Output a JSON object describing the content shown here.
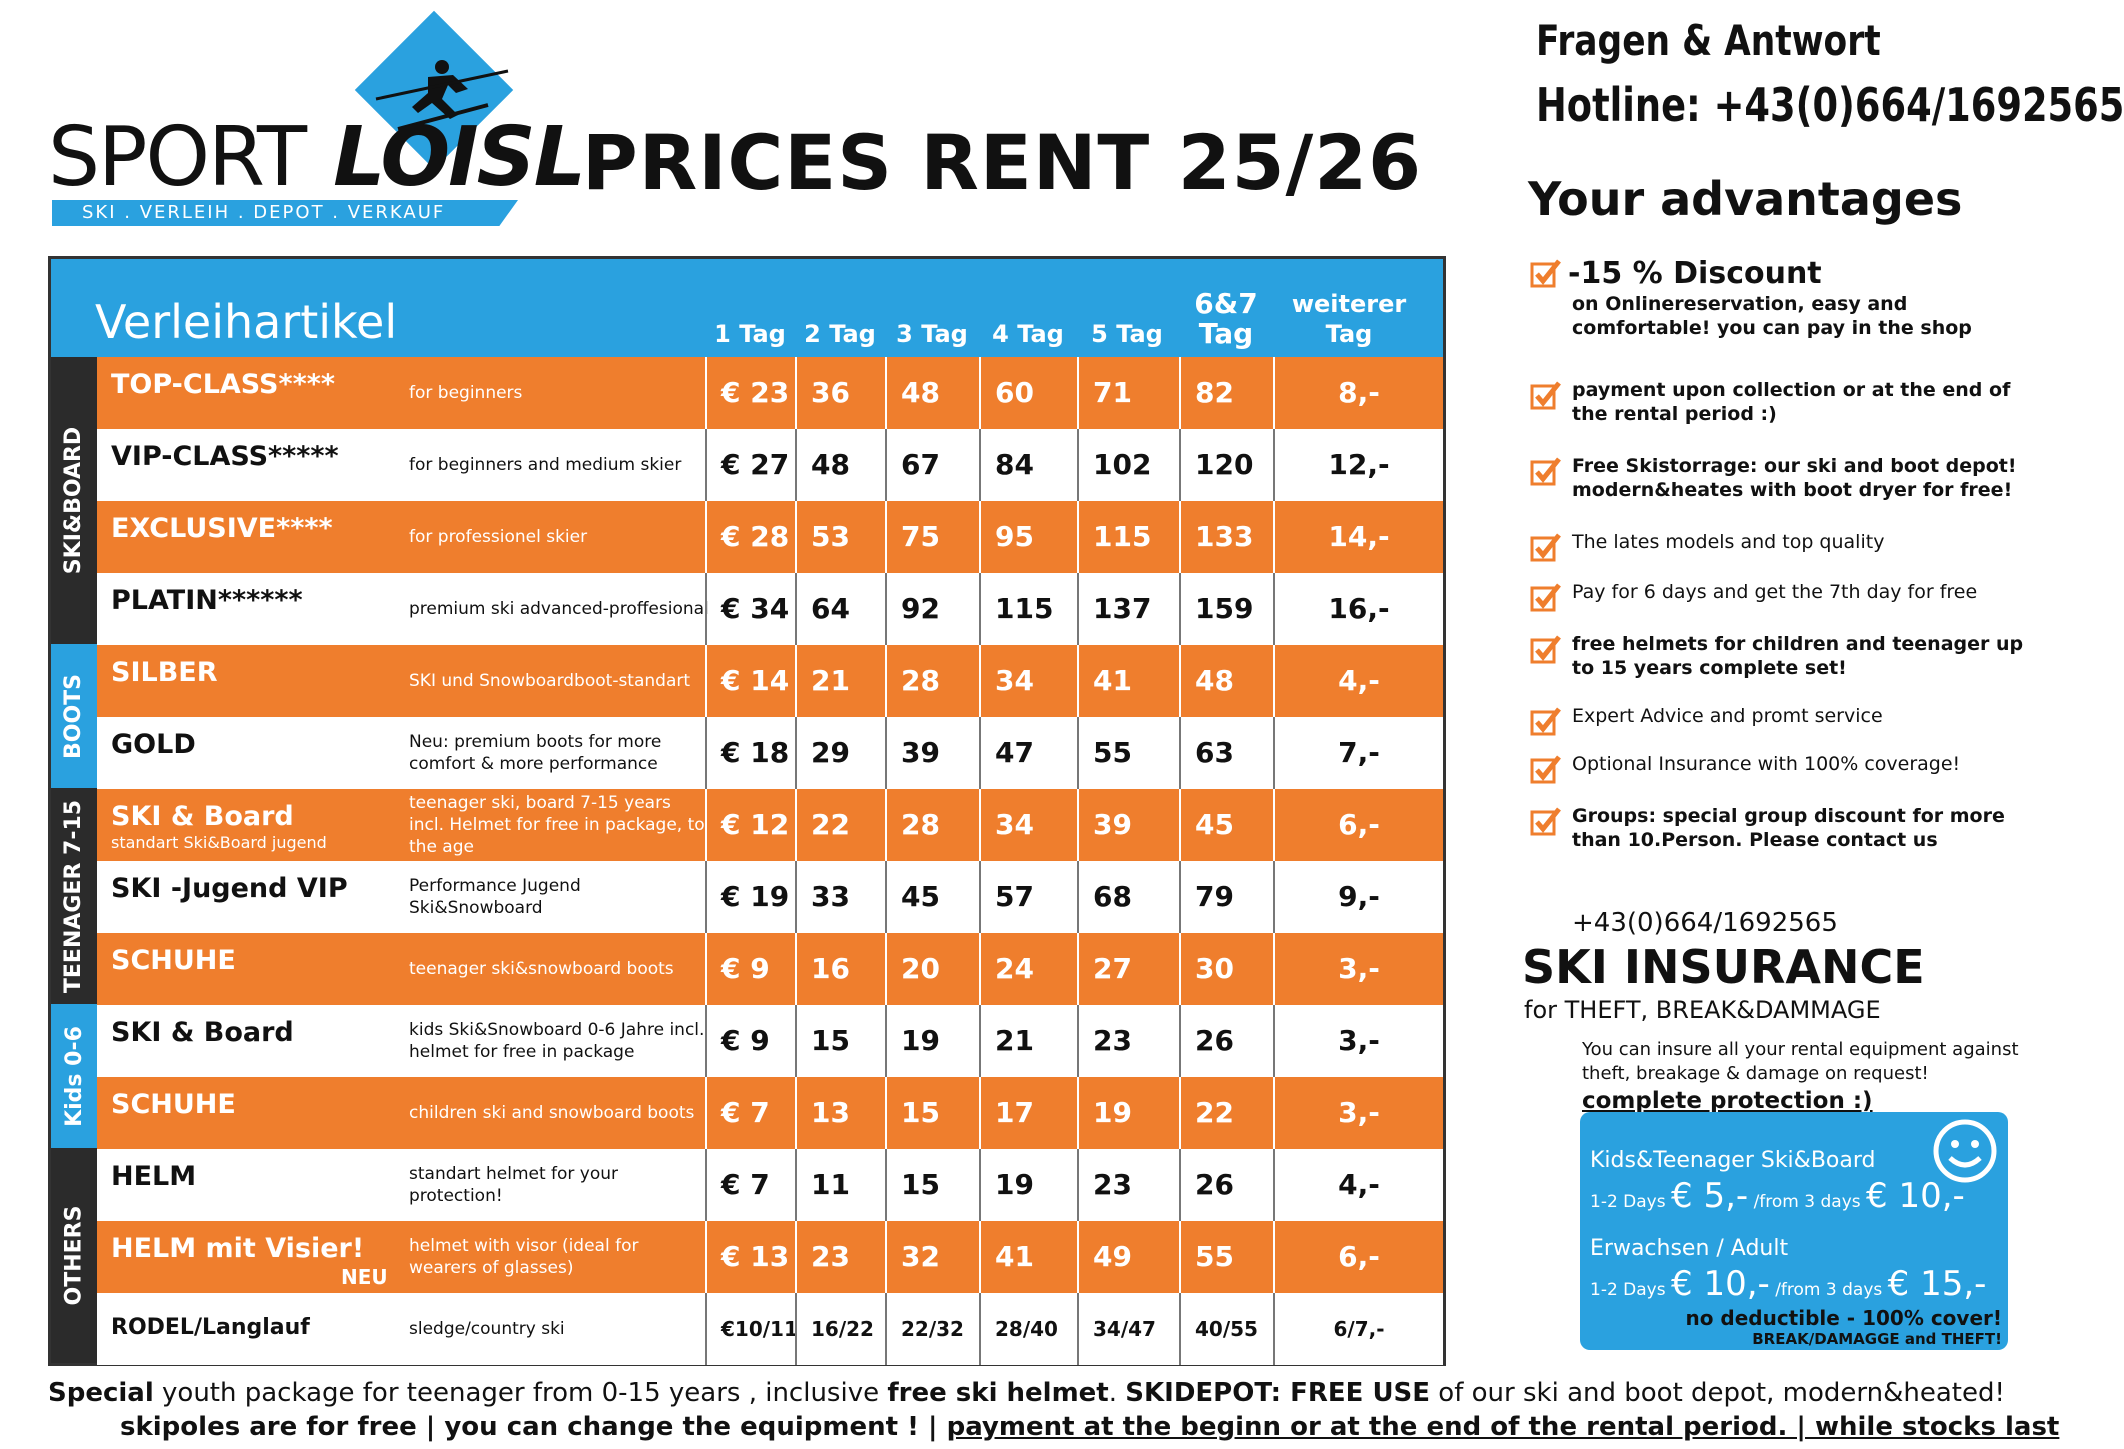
{
  "logo": {
    "brand_a": "SPORT",
    "brand_b": "LOISL",
    "tagline": "SKI . VERLEIH . DEPOT . VERKAUF"
  },
  "title": "PRICES RENT 25/26",
  "table": {
    "header_title": "Verleihartikel",
    "columns": [
      "1 Tag",
      "2 Tag",
      "3 Tag",
      "4 Tag",
      "5 Tag",
      "6&7 Tag",
      "weiterer Tag"
    ],
    "categories": [
      "SKI&BOARD",
      "BOOTS",
      "TEENAGER 7-15",
      "Kids 0-6",
      "OTHERS"
    ],
    "rows": [
      {
        "name": "TOP-CLASS****",
        "desc": "for beginners",
        "prices": [
          "€ 23",
          "36",
          "48",
          "60",
          "71",
          "82",
          "8,-"
        ]
      },
      {
        "name": "VIP-CLASS*****",
        "desc": "for beginners and medium skier",
        "prices": [
          "€ 27",
          "48",
          "67",
          "84",
          "102",
          "120",
          "12,-"
        ]
      },
      {
        "name": "EXCLUSIVE****",
        "desc": "for professionel skier",
        "prices": [
          "€ 28",
          "53",
          "75",
          "95",
          "115",
          "133",
          "14,-"
        ]
      },
      {
        "name": "PLATIN******",
        "desc": "premium ski advanced-proffesional",
        "prices": [
          "€ 34",
          "64",
          "92",
          "115",
          "137",
          "159",
          "16,-"
        ]
      },
      {
        "name": "SILBER",
        "desc": "SKI und Snowboardboot-standart",
        "prices": [
          "€ 14",
          "21",
          "28",
          "34",
          "41",
          "48",
          "4,-"
        ]
      },
      {
        "name": "GOLD",
        "desc": "Neu: premium boots for more comfort & more performance",
        "prices": [
          "€ 18",
          "29",
          "39",
          "47",
          "55",
          "63",
          "7,-"
        ]
      },
      {
        "name": "SKI & Board",
        "sub": "standart Ski&Board jugend",
        "desc": "teenager ski, board 7-15 years incl. Helmet for free in package, to the age",
        "prices": [
          "€ 12",
          "22",
          "28",
          "34",
          "39",
          "45",
          "6,-"
        ]
      },
      {
        "name": "SKI -Jugend VIP",
        "desc": "Performance Jugend Ski&Snowboard",
        "prices": [
          "€ 19",
          "33",
          "45",
          "57",
          "68",
          "79",
          "9,-"
        ]
      },
      {
        "name": "SCHUHE",
        "desc": "teenager ski&snowboard boots",
        "prices": [
          "€ 9",
          "16",
          "20",
          "24",
          "27",
          "30",
          "3,-"
        ]
      },
      {
        "name": "SKI & Board",
        "desc": "kids Ski&Snowboard 0-6 Jahre incl. helmet for free in package",
        "prices": [
          "€ 9",
          "15",
          "19",
          "21",
          "23",
          "26",
          "3,-"
        ]
      },
      {
        "name": "SCHUHE",
        "desc": "children ski and snowboard boots",
        "prices": [
          "€ 7",
          "13",
          "15",
          "17",
          "19",
          "22",
          "3,-"
        ]
      },
      {
        "name": "HELM",
        "desc": "standart helmet for your protection!",
        "prices": [
          "€ 7",
          "11",
          "15",
          "19",
          "23",
          "26",
          "4,-"
        ]
      },
      {
        "name": "HELM mit Visier!",
        "neu": "NEU",
        "desc": "helmet with visor (ideal for wearers of glasses)",
        "prices": [
          "€ 13",
          "23",
          "32",
          "41",
          "49",
          "55",
          "6,-"
        ]
      },
      {
        "name": "RODEL/Langlauf",
        "desc": "sledge/country ski",
        "prices": [
          "€10/11",
          "16/22",
          "22/32",
          "28/40",
          "34/47",
          "40/55",
          "6/7,-"
        ]
      }
    ]
  },
  "side": {
    "qa": "Fragen & Antwort",
    "hotline": "Hotline: +43(0)664/1692565",
    "adv_title": "Your advantages",
    "advantages": [
      {
        "big": "-15 % Discount",
        "text": "on Onlinereservation, easy and comfortable! you can pay in the shop"
      },
      {
        "text": "payment upon collection or at the end of the rental period :)"
      },
      {
        "text": "Free Skistorrage: our ski and boot depot! modern&heates with boot dryer for free!"
      },
      {
        "text": "The lates models and top quality"
      },
      {
        "text": "Pay for 6 days and get the 7th day for free"
      },
      {
        "text": "free helmets for children and teenager up to 15 years complete set!"
      },
      {
        "text": "Expert Advice and promt service"
      },
      {
        "text": "Optional Insurance with 100% coverage!"
      },
      {
        "text": "Groups: special group discount for more than 10.Person. Please contact us"
      }
    ],
    "phone": "+43(0)664/1692565",
    "ins_title": "SKI INSURANCE",
    "ins_sub": "for THEFT, BREAK&DAMMAGE",
    "ins_text": "You can insure all your rental equipment against theft, breakage & damage on request!",
    "ins_link": "complete protection :)",
    "box": {
      "kids_label": "Kids&Teenager Ski&Board",
      "days12": "1-2 Days",
      "kids_p1": "€ 5,-",
      "from3": "/from 3 days",
      "kids_p2": "€ 10,-",
      "adult_label": "Erwachsen / Adult",
      "adult_p1": "€ 10,-",
      "adult_p2": "€ 15,-",
      "nd": "no deductible - 100% cover!",
      "bd": "BREAK/DAMAGGE and THEFT!"
    }
  },
  "footer": {
    "a1": "Special",
    "a2": " youth package  for teenager from 0-15 years , inclusive ",
    "a3": "free ski helmet",
    "a4": ". ",
    "a5": "SKIDEPOT: FREE USE",
    "a6": " of our ski and boot depot, modern&heated!",
    "b1": "skipoles are for free | you can change the equipment ! | ",
    "b2": "payment at the beginn or at the end of the rental period. | while stocks last"
  },
  "colors": {
    "orange": "#ef7e2d",
    "blue": "#2aa1df",
    "dark": "#2b2b2b"
  },
  "icons": {
    "checkbox": "orange-checkmark-box",
    "skier": "skier-logo",
    "smiley": "smiley-face"
  }
}
